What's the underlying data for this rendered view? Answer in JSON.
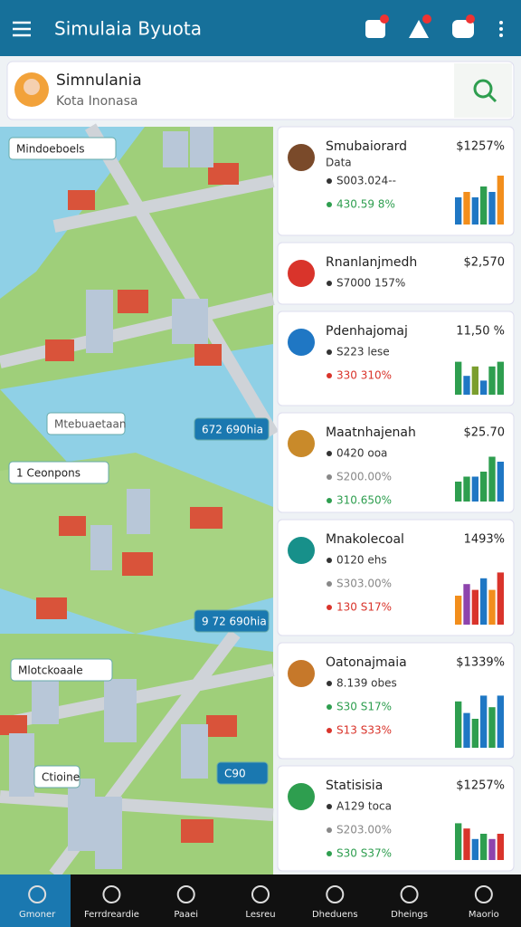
{
  "header": {
    "title": "Simulaia Byuota"
  },
  "search": {
    "name": "Simnulania",
    "location": "Kota Inonasa"
  },
  "map": {
    "labels": [
      "Mindoeboels",
      "672 690hia",
      "Mtebuaetaan",
      "1 Ceonpons",
      "9 72 690hia",
      "Mlotckoaale",
      "Ctioine",
      "C90"
    ]
  },
  "cards": [
    {
      "title": "Smubaiorard",
      "subtitle": "Data",
      "value": "$1257%",
      "icon": "#7a4a2a",
      "lines": [
        {
          "text": "S003.024--",
          "color": "#333333"
        },
        {
          "text": "430.59 8%",
          "color": "#2e9e4f"
        }
      ],
      "ylim": [
        0,
        10
      ],
      "bars": [
        5,
        6,
        5,
        7,
        6,
        9
      ],
      "bar_colors": [
        "#1f77c4",
        "#f28e1c",
        "#1f77c4",
        "#2e9e4f",
        "#1f77c4",
        "#f28e1c"
      ]
    },
    {
      "title": "Rnanlanjmedh",
      "value": "$2,570",
      "icon": "#d9342b",
      "lines": [
        {
          "text": "S7000 157%",
          "color": "#333333"
        }
      ],
      "ylim": [
        0,
        10
      ],
      "bars": [],
      "bar_colors": []
    },
    {
      "title": "Pdenhajomaj",
      "value": "11,50 %",
      "icon": "#1f77c4",
      "lines": [
        {
          "text": "S223 lese",
          "color": "#333333"
        },
        {
          "text": "330 310%",
          "color": "#d9342b"
        }
      ],
      "ylim": [
        0,
        10
      ],
      "bars": [
        7,
        4,
        6,
        3,
        6,
        7
      ],
      "bar_colors": [
        "#2e9e4f",
        "#1f77c4",
        "#7b9e2e",
        "#1f77c4",
        "#2e9e4f",
        "#2e9e4f"
      ]
    },
    {
      "title": "Maatnhajenah",
      "value": "$25.70",
      "icon": "#c98a2a",
      "lines": [
        {
          "text": "0420 ooa",
          "color": "#333333"
        },
        {
          "text": "S200.00%",
          "color": "#888888"
        },
        {
          "text": "310.650%",
          "color": "#2e9e4f"
        }
      ],
      "ylim": [
        0,
        10
      ],
      "bars": [
        4,
        5,
        5,
        6,
        9,
        8
      ],
      "bar_colors": [
        "#2e9e4f",
        "#2e9e4f",
        "#1f77c4",
        "#2e9e4f",
        "#2e9e4f",
        "#1f77c4"
      ]
    },
    {
      "title": "Mnakolecoal",
      "value": "1493%",
      "icon": "#17908a",
      "lines": [
        {
          "text": "0120 ehs",
          "color": "#333333"
        },
        {
          "text": "S303.00%",
          "color": "#888888"
        },
        {
          "text": "130 S17%",
          "color": "#d9342b"
        }
      ],
      "ylim": [
        0,
        10
      ],
      "bars": [
        5,
        7,
        6,
        8,
        6,
        9
      ],
      "bar_colors": [
        "#f28e1c",
        "#8e44ad",
        "#d9342b",
        "#1f77c4",
        "#f28e1c",
        "#d9342b"
      ]
    },
    {
      "title": "Oatonajmaia",
      "value": "$1339%",
      "icon": "#c6782a",
      "lines": [
        {
          "text": "8.139 obes",
          "color": "#333333"
        },
        {
          "text": "S30 S17%",
          "color": "#2e9e4f"
        },
        {
          "text": "S13 S33%",
          "color": "#d9342b"
        }
      ],
      "ylim": [
        0,
        10
      ],
      "bars": [
        8,
        6,
        5,
        9,
        7,
        9
      ],
      "bar_colors": [
        "#2e9e4f",
        "#1f77c4",
        "#2e9e4f",
        "#1f77c4",
        "#2e9e4f",
        "#1f77c4"
      ]
    },
    {
      "title": "Statisisia",
      "value": "$1257%",
      "icon": "#2e9e4f",
      "lines": [
        {
          "text": "A129 toca",
          "color": "#333333"
        },
        {
          "text": "S203.00%",
          "color": "#888888"
        },
        {
          "text": "S30 S37%",
          "color": "#2e9e4f"
        }
      ],
      "ylim": [
        0,
        10
      ],
      "bars": [
        7,
        6,
        4,
        5,
        4,
        5
      ],
      "bar_colors": [
        "#2e9e4f",
        "#d9342b",
        "#1f77c4",
        "#2e9e4f",
        "#8e44ad",
        "#d9342b"
      ]
    }
  ],
  "nav": [
    "Gmoner",
    "Ferrdreardie",
    "Paaei",
    "Lesreu",
    "Dheduens",
    "Dheings",
    "Maorio"
  ]
}
